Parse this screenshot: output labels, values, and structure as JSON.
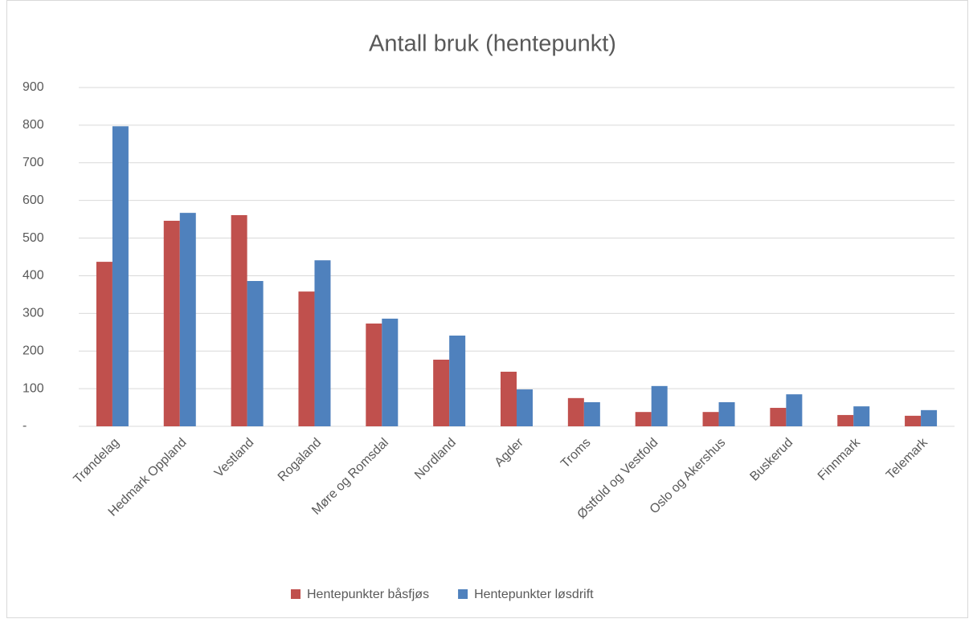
{
  "chart_data": {
    "type": "bar",
    "title": "Antall bruk (hentepunkt)",
    "categories": [
      "Trøndelag",
      "Hedmark Oppland",
      "Vestland",
      "Rogaland",
      "Møre og Romsdal",
      "Nordland",
      "Agder",
      "Troms",
      "Østfold og Vestfold",
      "Oslo og Akershus",
      "Buskerud",
      "Finnmark",
      "Telemark"
    ],
    "series": [
      {
        "name": "Hentepunkter båsfjøs",
        "color": "#c0504d",
        "values": [
          437,
          546,
          561,
          358,
          273,
          177,
          145,
          75,
          38,
          38,
          49,
          30,
          28
        ]
      },
      {
        "name": "Hentepunkter løsdrift",
        "color": "#4f81bd",
        "values": [
          797,
          567,
          386,
          441,
          286,
          241,
          98,
          64,
          107,
          64,
          85,
          53,
          43
        ]
      }
    ],
    "ylim": [
      0,
      900
    ],
    "yticks": [
      {
        "value": 0,
        "label": "-"
      },
      100,
      200,
      300,
      400,
      500,
      600,
      700,
      800,
      900
    ],
    "grid": true,
    "legend": "bottom"
  }
}
